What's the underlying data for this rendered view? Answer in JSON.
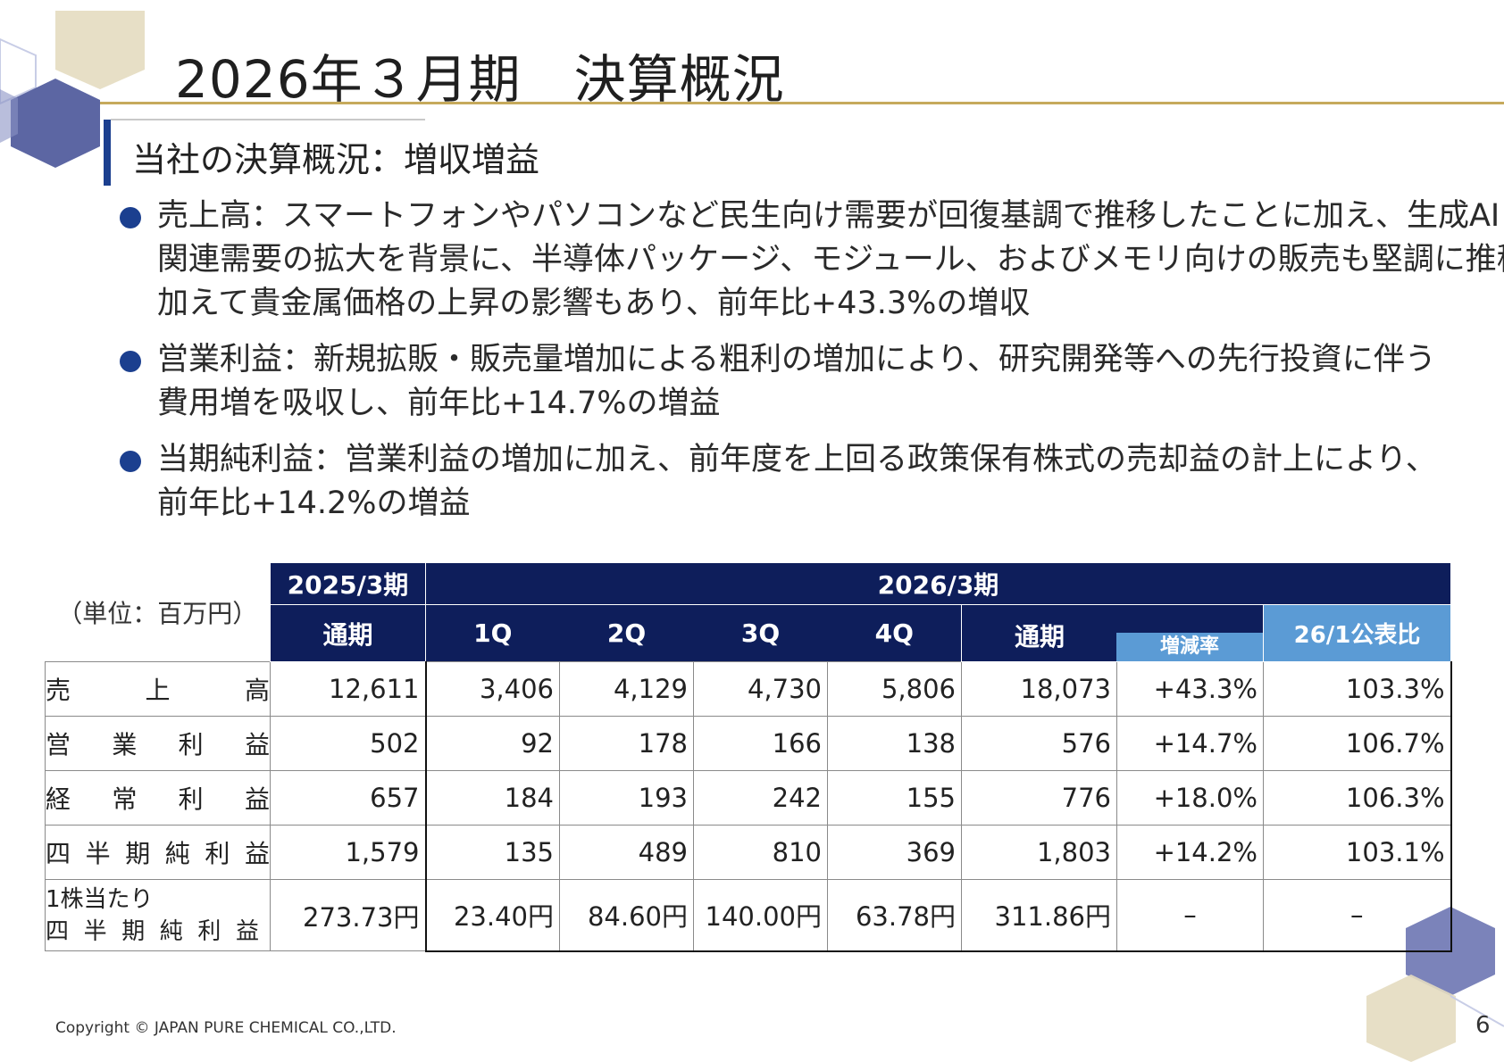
{
  "title": "2026年３月期　決算概況",
  "subtitle": "当社の決算概況：増収増益",
  "bullets": [
    {
      "lines": [
        "売上高：スマートフォンやパソコンなど民生向け需要が回復基調で推移したことに加え、生成AI",
        "関連需要の拡大を背景に、半導体パッケージ、モジュール、およびメモリ向けの販売も堅調に推移",
        "加えて貴金属価格の上昇の影響もあり、前年比+43.3%の増収"
      ]
    },
    {
      "lines": [
        "営業利益：新規拡販・販売量増加による粗利の増加により、研究開発等への先行投資に伴う",
        "費用増を吸収し、前年比+14.7%の増益"
      ]
    },
    {
      "lines": [
        "当期純利益：営業利益の増加に加え、前年度を上回る政策保有株式の売却益の計上により、",
        "前年比+14.2%の増益"
      ]
    }
  ],
  "table": {
    "unit": "（単位：百万円）",
    "prev_period": "2025/3期",
    "curr_period": "2026/3期",
    "full_year": "通期",
    "quarters": [
      "1Q",
      "2Q",
      "3Q",
      "4Q"
    ],
    "full_year_curr": "通期",
    "change_rate": "増減率",
    "vs_forecast": "26/1公表比",
    "rows": [
      {
        "label": [
          "売",
          "上",
          "高"
        ],
        "prev": "12,611",
        "q": [
          "3,406",
          "4,129",
          "4,730",
          "5,806"
        ],
        "full": "18,073",
        "rate": "+43.3%",
        "forecast": "103.3%"
      },
      {
        "label": [
          "営",
          "業",
          "利",
          "益"
        ],
        "prev": "502",
        "q": [
          "92",
          "178",
          "166",
          "138"
        ],
        "full": "576",
        "rate": "+14.7%",
        "forecast": "106.7%"
      },
      {
        "label": [
          "経",
          "常",
          "利",
          "益"
        ],
        "prev": "657",
        "q": [
          "184",
          "193",
          "242",
          "155"
        ],
        "full": "776",
        "rate": "+18.0%",
        "forecast": "106.3%"
      },
      {
        "label": [
          "四",
          "半",
          "期",
          "純",
          "利",
          "益"
        ],
        "prev": "1,579",
        "q": [
          "135",
          "489",
          "810",
          "369"
        ],
        "full": "1,803",
        "rate": "+14.2%",
        "forecast": "103.1%"
      },
      {
        "label_line1": "1株当たり",
        "label_line2": [
          "四",
          "半",
          "期",
          "純",
          "利",
          "益"
        ],
        "prev": "273.73円",
        "q": [
          "23.40円",
          "84.60円",
          "140.00円",
          "63.78円"
        ],
        "full": "311.86円",
        "rate": "–",
        "forecast": "–"
      }
    ]
  },
  "footer": "Copyright © JAPAN PURE CHEMICAL CO.,LTD.",
  "page_number": "6",
  "colors": {
    "navy": "#0e1e5b",
    "accent_blue": "#5b9bd5",
    "gold": "#c6aa5c",
    "bullet_blue": "#1b3f8f"
  }
}
